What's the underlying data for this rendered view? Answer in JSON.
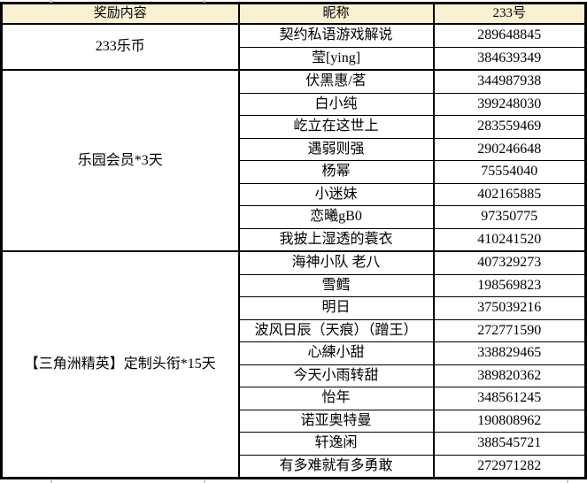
{
  "colors": {
    "header_bg": "#FAF0D2",
    "border": "#000000",
    "cell_bg": "#FFFFFF"
  },
  "table": {
    "headers": {
      "reward": "奖励内容",
      "nickname": "昵称",
      "number": "233号"
    },
    "groups": [
      {
        "reward": "233乐币",
        "rows": [
          {
            "nickname": "契约私语游戏解说",
            "number": "289648845"
          },
          {
            "nickname": "莹[ying]",
            "number": "384639349"
          }
        ]
      },
      {
        "reward": "乐园会员*3天",
        "rows": [
          {
            "nickname": "伏黑惠/茗",
            "number": "344987938"
          },
          {
            "nickname": "白小纯",
            "number": "399248030"
          },
          {
            "nickname": "屹立在这世上",
            "number": "283559469"
          },
          {
            "nickname": "遇弱则强",
            "number": "290246648"
          },
          {
            "nickname": "杨幂",
            "number": "75554040"
          },
          {
            "nickname": "小迷妹",
            "number": "402165885"
          },
          {
            "nickname": "恋曦gB0",
            "number": "97350775"
          },
          {
            "nickname": "我披上湿透的蓑衣",
            "number": "410241520"
          }
        ]
      },
      {
        "reward": "【三角洲精英】定制头衔*15天",
        "rows": [
          {
            "nickname": "海神小队 老八",
            "number": "407329273"
          },
          {
            "nickname": "雪鳕",
            "number": "198569823"
          },
          {
            "nickname": "明日",
            "number": "375039216"
          },
          {
            "nickname": "波风日辰（天痕）（蹭王）",
            "number": "272771590"
          },
          {
            "nickname": "心練小甜",
            "number": "338829465"
          },
          {
            "nickname": "今天小雨转甜",
            "number": "389820362"
          },
          {
            "nickname": "怡年",
            "number": "348561245"
          },
          {
            "nickname": "诺亚奥特曼",
            "number": "190808962"
          },
          {
            "nickname": "轩逸闲",
            "number": "388545721"
          },
          {
            "nickname": "有多难就有多勇敢",
            "number": "272971282"
          }
        ]
      }
    ]
  }
}
